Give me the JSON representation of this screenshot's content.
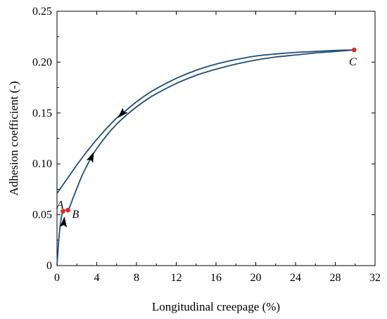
{
  "chart_data": {
    "type": "line",
    "title": "",
    "xlabel": "Longitudinal creepage (%)",
    "ylabel": "Adhesion coefficient (-)",
    "xlim": [
      0,
      32
    ],
    "ylim": [
      0,
      0.25
    ],
    "xticks": [
      0,
      4,
      8,
      12,
      16,
      20,
      24,
      28,
      32
    ],
    "yticks": [
      0,
      0.05,
      0.1,
      0.15,
      0.2,
      0.25
    ],
    "xtick_labels": [
      "0",
      "4",
      "8",
      "12",
      "16",
      "20",
      "24",
      "28",
      "32"
    ],
    "ytick_labels": [
      "0",
      "0.05",
      "0.10",
      "0.15",
      "0.20",
      "0.25"
    ],
    "grid": false,
    "line_color": "#1f4e79",
    "marker_color": "#e8281e",
    "series": [
      {
        "direction": "loading",
        "x": [
          0,
          0.2,
          0.4,
          0.6,
          0.9,
          1.2,
          1.6,
          2.0,
          2.5,
          3.0,
          3.5,
          4.0,
          5.0,
          6.0,
          7.0,
          8.0,
          9.0,
          10.0,
          12.0,
          14.0,
          16.0,
          18.0,
          20.0,
          22.0,
          24.0,
          26.0,
          28.0,
          30.0
        ],
        "y": [
          0,
          0.028,
          0.045,
          0.0535,
          0.0545,
          0.056,
          0.066,
          0.076,
          0.088,
          0.098,
          0.107,
          0.115,
          0.128,
          0.139,
          0.148,
          0.156,
          0.163,
          0.169,
          0.179,
          0.187,
          0.193,
          0.198,
          0.202,
          0.205,
          0.207,
          0.209,
          0.2105,
          0.212
        ]
      },
      {
        "direction": "unloading",
        "x": [
          30.0,
          28.0,
          26.0,
          24.0,
          22.0,
          20.0,
          18.0,
          16.0,
          14.0,
          12.0,
          10.0,
          9.0,
          8.0,
          7.0,
          6.0,
          5.0,
          4.0,
          3.0,
          2.5,
          2.0,
          1.5,
          1.0,
          0.5,
          0
        ],
        "y": [
          0.212,
          0.2115,
          0.2105,
          0.2095,
          0.208,
          0.206,
          0.2025,
          0.198,
          0.192,
          0.184,
          0.174,
          0.168,
          0.161,
          0.153,
          0.145,
          0.135,
          0.124,
          0.112,
          0.1055,
          0.099,
          0.092,
          0.085,
          0.078,
          0.071
        ]
      }
    ],
    "arrows": [
      {
        "x": 0.7,
        "y": 0.043,
        "dx": 0.15,
        "dy": 0.016
      },
      {
        "x": 3.5,
        "y": 0.107,
        "dx": 0.5,
        "dy": 0.012
      },
      {
        "x": 6.5,
        "y": 0.149,
        "dx": -0.8,
        "dy": -0.008
      }
    ],
    "points": [
      {
        "label": "A",
        "x": 0.6,
        "y": 0.0535,
        "label_position": "upper-left"
      },
      {
        "label": "B",
        "x": 1.1,
        "y": 0.0545,
        "label_position": "lower-right"
      },
      {
        "label": "C",
        "x": 29.9,
        "y": 0.212,
        "label_position": "below"
      }
    ]
  }
}
